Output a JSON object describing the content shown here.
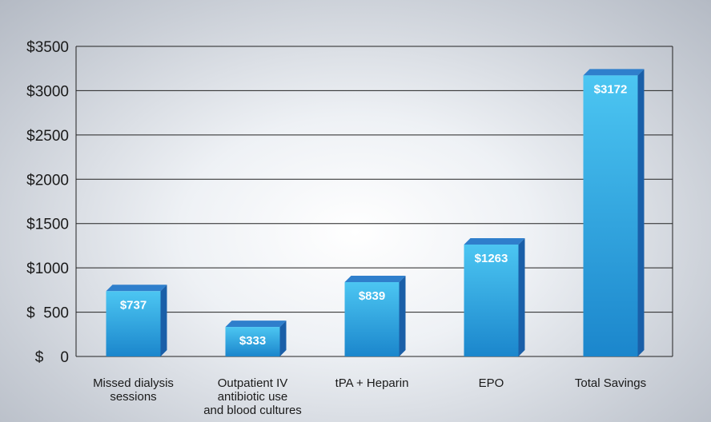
{
  "chart_data": {
    "type": "bar",
    "title": "",
    "xlabel": "",
    "ylabel": "",
    "ylim": [
      0,
      3500
    ],
    "grid": true,
    "y_ticks": [
      {
        "value": 0,
        "label": "$    0"
      },
      {
        "value": 500,
        "label": "$  500"
      },
      {
        "value": 1000,
        "label": "$1000"
      },
      {
        "value": 1500,
        "label": "$1500"
      },
      {
        "value": 2000,
        "label": "$2000"
      },
      {
        "value": 2500,
        "label": "$2500"
      },
      {
        "value": 3000,
        "label": "$3000"
      },
      {
        "value": 3500,
        "label": "$3500"
      }
    ],
    "categories": [
      [
        "Missed dialysis",
        "sessions"
      ],
      [
        "Outpatient IV",
        "antibiotic use",
        "and blood cultures"
      ],
      [
        "tPA + Heparin"
      ],
      [
        "EPO"
      ],
      [
        "Total Savings"
      ]
    ],
    "values": [
      737,
      333,
      839,
      1263,
      3172
    ],
    "data_labels": [
      "$737",
      "$333",
      "$839",
      "$1263",
      "$3172"
    ],
    "colors": {
      "bar_front_top": "#4cc6f2",
      "bar_front_bottom": "#1b86cc",
      "bar_side": "#1a5fa8",
      "bar_top": "#2f7fcc",
      "grid": "#222222"
    }
  }
}
